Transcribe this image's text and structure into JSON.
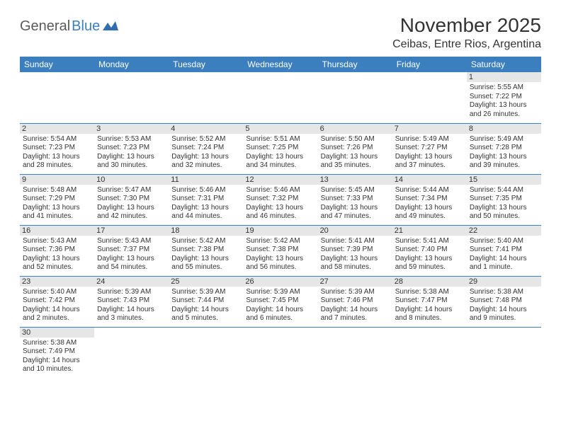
{
  "logo": {
    "text1": "General",
    "text2": "Blue"
  },
  "title": "November 2025",
  "location": "Ceibas, Entre Rios, Argentina",
  "weekdays": [
    "Sunday",
    "Monday",
    "Tuesday",
    "Wednesday",
    "Thursday",
    "Friday",
    "Saturday"
  ],
  "colors": {
    "header_bg": "#3b7fbf",
    "header_text": "#ffffff",
    "daynum_bg": "#e6e6e6",
    "border": "#3b7fbf",
    "logo_gray": "#5a5a5a",
    "logo_blue": "#3b7fbf"
  },
  "weeks": [
    [
      null,
      null,
      null,
      null,
      null,
      null,
      {
        "day": "1",
        "sunrise": "Sunrise: 5:55 AM",
        "sunset": "Sunset: 7:22 PM",
        "daylight1": "Daylight: 13 hours",
        "daylight2": "and 26 minutes."
      }
    ],
    [
      {
        "day": "2",
        "sunrise": "Sunrise: 5:54 AM",
        "sunset": "Sunset: 7:23 PM",
        "daylight1": "Daylight: 13 hours",
        "daylight2": "and 28 minutes."
      },
      {
        "day": "3",
        "sunrise": "Sunrise: 5:53 AM",
        "sunset": "Sunset: 7:23 PM",
        "daylight1": "Daylight: 13 hours",
        "daylight2": "and 30 minutes."
      },
      {
        "day": "4",
        "sunrise": "Sunrise: 5:52 AM",
        "sunset": "Sunset: 7:24 PM",
        "daylight1": "Daylight: 13 hours",
        "daylight2": "and 32 minutes."
      },
      {
        "day": "5",
        "sunrise": "Sunrise: 5:51 AM",
        "sunset": "Sunset: 7:25 PM",
        "daylight1": "Daylight: 13 hours",
        "daylight2": "and 34 minutes."
      },
      {
        "day": "6",
        "sunrise": "Sunrise: 5:50 AM",
        "sunset": "Sunset: 7:26 PM",
        "daylight1": "Daylight: 13 hours",
        "daylight2": "and 35 minutes."
      },
      {
        "day": "7",
        "sunrise": "Sunrise: 5:49 AM",
        "sunset": "Sunset: 7:27 PM",
        "daylight1": "Daylight: 13 hours",
        "daylight2": "and 37 minutes."
      },
      {
        "day": "8",
        "sunrise": "Sunrise: 5:49 AM",
        "sunset": "Sunset: 7:28 PM",
        "daylight1": "Daylight: 13 hours",
        "daylight2": "and 39 minutes."
      }
    ],
    [
      {
        "day": "9",
        "sunrise": "Sunrise: 5:48 AM",
        "sunset": "Sunset: 7:29 PM",
        "daylight1": "Daylight: 13 hours",
        "daylight2": "and 41 minutes."
      },
      {
        "day": "10",
        "sunrise": "Sunrise: 5:47 AM",
        "sunset": "Sunset: 7:30 PM",
        "daylight1": "Daylight: 13 hours",
        "daylight2": "and 42 minutes."
      },
      {
        "day": "11",
        "sunrise": "Sunrise: 5:46 AM",
        "sunset": "Sunset: 7:31 PM",
        "daylight1": "Daylight: 13 hours",
        "daylight2": "and 44 minutes."
      },
      {
        "day": "12",
        "sunrise": "Sunrise: 5:46 AM",
        "sunset": "Sunset: 7:32 PM",
        "daylight1": "Daylight: 13 hours",
        "daylight2": "and 46 minutes."
      },
      {
        "day": "13",
        "sunrise": "Sunrise: 5:45 AM",
        "sunset": "Sunset: 7:33 PM",
        "daylight1": "Daylight: 13 hours",
        "daylight2": "and 47 minutes."
      },
      {
        "day": "14",
        "sunrise": "Sunrise: 5:44 AM",
        "sunset": "Sunset: 7:34 PM",
        "daylight1": "Daylight: 13 hours",
        "daylight2": "and 49 minutes."
      },
      {
        "day": "15",
        "sunrise": "Sunrise: 5:44 AM",
        "sunset": "Sunset: 7:35 PM",
        "daylight1": "Daylight: 13 hours",
        "daylight2": "and 50 minutes."
      }
    ],
    [
      {
        "day": "16",
        "sunrise": "Sunrise: 5:43 AM",
        "sunset": "Sunset: 7:36 PM",
        "daylight1": "Daylight: 13 hours",
        "daylight2": "and 52 minutes."
      },
      {
        "day": "17",
        "sunrise": "Sunrise: 5:43 AM",
        "sunset": "Sunset: 7:37 PM",
        "daylight1": "Daylight: 13 hours",
        "daylight2": "and 54 minutes."
      },
      {
        "day": "18",
        "sunrise": "Sunrise: 5:42 AM",
        "sunset": "Sunset: 7:38 PM",
        "daylight1": "Daylight: 13 hours",
        "daylight2": "and 55 minutes."
      },
      {
        "day": "19",
        "sunrise": "Sunrise: 5:42 AM",
        "sunset": "Sunset: 7:38 PM",
        "daylight1": "Daylight: 13 hours",
        "daylight2": "and 56 minutes."
      },
      {
        "day": "20",
        "sunrise": "Sunrise: 5:41 AM",
        "sunset": "Sunset: 7:39 PM",
        "daylight1": "Daylight: 13 hours",
        "daylight2": "and 58 minutes."
      },
      {
        "day": "21",
        "sunrise": "Sunrise: 5:41 AM",
        "sunset": "Sunset: 7:40 PM",
        "daylight1": "Daylight: 13 hours",
        "daylight2": "and 59 minutes."
      },
      {
        "day": "22",
        "sunrise": "Sunrise: 5:40 AM",
        "sunset": "Sunset: 7:41 PM",
        "daylight1": "Daylight: 14 hours",
        "daylight2": "and 1 minute."
      }
    ],
    [
      {
        "day": "23",
        "sunrise": "Sunrise: 5:40 AM",
        "sunset": "Sunset: 7:42 PM",
        "daylight1": "Daylight: 14 hours",
        "daylight2": "and 2 minutes."
      },
      {
        "day": "24",
        "sunrise": "Sunrise: 5:39 AM",
        "sunset": "Sunset: 7:43 PM",
        "daylight1": "Daylight: 14 hours",
        "daylight2": "and 3 minutes."
      },
      {
        "day": "25",
        "sunrise": "Sunrise: 5:39 AM",
        "sunset": "Sunset: 7:44 PM",
        "daylight1": "Daylight: 14 hours",
        "daylight2": "and 5 minutes."
      },
      {
        "day": "26",
        "sunrise": "Sunrise: 5:39 AM",
        "sunset": "Sunset: 7:45 PM",
        "daylight1": "Daylight: 14 hours",
        "daylight2": "and 6 minutes."
      },
      {
        "day": "27",
        "sunrise": "Sunrise: 5:39 AM",
        "sunset": "Sunset: 7:46 PM",
        "daylight1": "Daylight: 14 hours",
        "daylight2": "and 7 minutes."
      },
      {
        "day": "28",
        "sunrise": "Sunrise: 5:38 AM",
        "sunset": "Sunset: 7:47 PM",
        "daylight1": "Daylight: 14 hours",
        "daylight2": "and 8 minutes."
      },
      {
        "day": "29",
        "sunrise": "Sunrise: 5:38 AM",
        "sunset": "Sunset: 7:48 PM",
        "daylight1": "Daylight: 14 hours",
        "daylight2": "and 9 minutes."
      }
    ],
    [
      {
        "day": "30",
        "sunrise": "Sunrise: 5:38 AM",
        "sunset": "Sunset: 7:49 PM",
        "daylight1": "Daylight: 14 hours",
        "daylight2": "and 10 minutes."
      },
      null,
      null,
      null,
      null,
      null,
      null
    ]
  ]
}
